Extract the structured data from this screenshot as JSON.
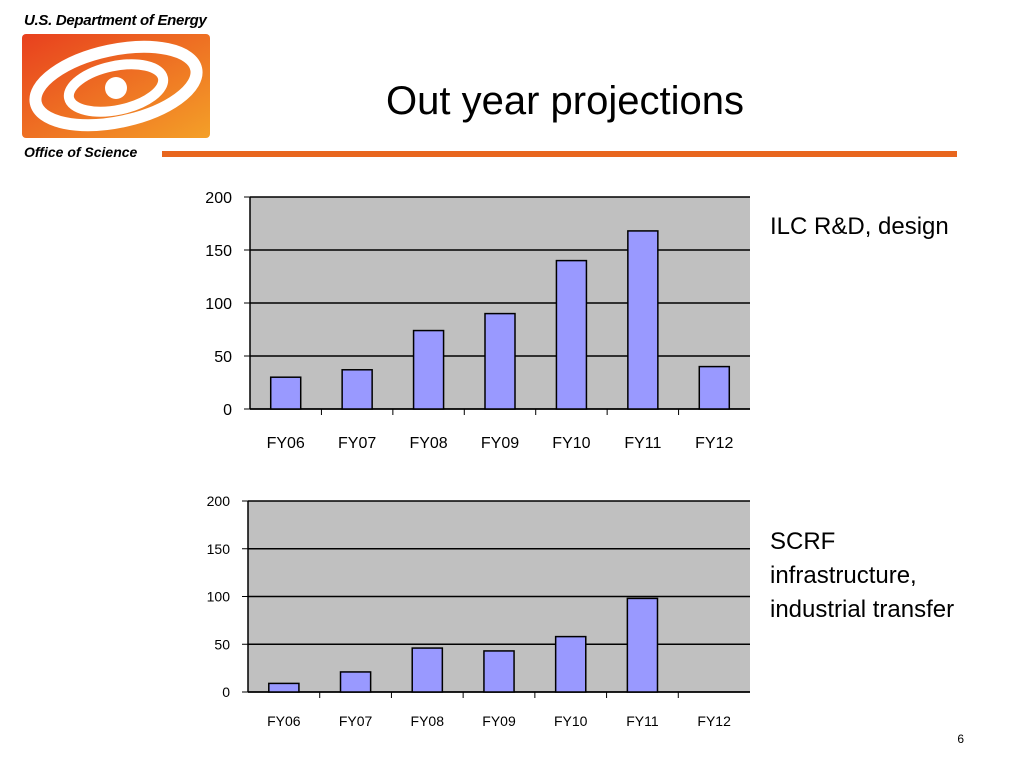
{
  "header": {
    "org_name": "U.S. Department of Energy",
    "office_name": "Office of Science",
    "brand_color": "#e8661e",
    "logo_icon": "doe-office-of-science-logo"
  },
  "slide": {
    "title": "Out year projections",
    "page_number": "6"
  },
  "chart_data": [
    {
      "type": "bar",
      "caption": "ILC R&D, design",
      "categories": [
        "FY06",
        "FY07",
        "FY08",
        "FY09",
        "FY10",
        "FY11",
        "FY12"
      ],
      "values": [
        30,
        37,
        74,
        90,
        140,
        168,
        40
      ],
      "yticks": [
        "0",
        "50",
        "100",
        "150",
        "200"
      ],
      "ylim": [
        0,
        200
      ],
      "grid": true,
      "bar_color": "#9999ff",
      "plot_background": "#c0c0c0"
    },
    {
      "type": "bar",
      "caption_lines": [
        "SCRF",
        "infrastructure,",
        "industrial transfer"
      ],
      "categories": [
        "FY06",
        "FY07",
        "FY08",
        "FY09",
        "FY10",
        "FY11",
        "FY12"
      ],
      "values": [
        9,
        21,
        46,
        43,
        58,
        98,
        0
      ],
      "yticks": [
        "0",
        "50",
        "100",
        "150",
        "200"
      ],
      "ylim": [
        0,
        200
      ],
      "grid": true,
      "bar_color": "#9999ff",
      "plot_background": "#c0c0c0"
    }
  ]
}
